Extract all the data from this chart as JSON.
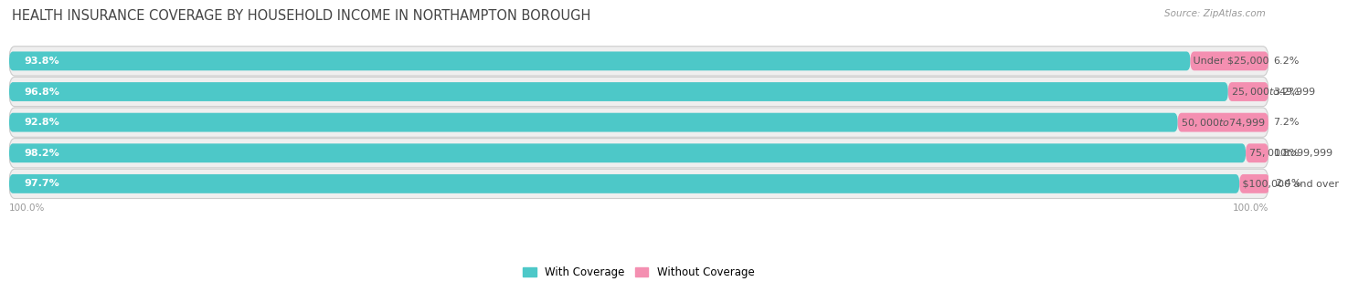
{
  "title": "HEALTH INSURANCE COVERAGE BY HOUSEHOLD INCOME IN NORTHAMPTON BOROUGH",
  "source": "Source: ZipAtlas.com",
  "categories": [
    "Under $25,000",
    "$25,000 to $49,999",
    "$50,000 to $74,999",
    "$75,000 to $99,999",
    "$100,000 and over"
  ],
  "with_coverage": [
    93.8,
    96.8,
    92.8,
    98.2,
    97.7
  ],
  "without_coverage": [
    6.2,
    3.2,
    7.2,
    1.8,
    2.4
  ],
  "coverage_color": "#4DC8C8",
  "no_coverage_color": "#F48FB1",
  "row_bg_color": "#EFEFEF",
  "bar_height": 0.62,
  "title_fontsize": 10.5,
  "label_fontsize": 8.0,
  "tick_fontsize": 7.5,
  "legend_fontsize": 8.5,
  "source_fontsize": 7.5
}
